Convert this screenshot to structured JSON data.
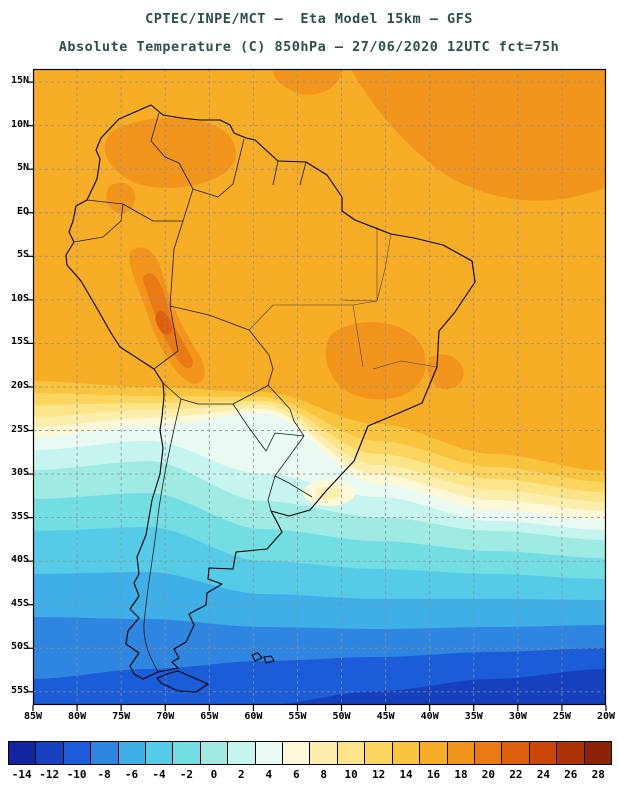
{
  "title": {
    "line1": "CPTEC/INPE/MCT –  Eta Model 15km – GFS",
    "line2": "Absolute Temperature (C) 850hPa – 27/06/2020 12UTC fct=75h"
  },
  "map": {
    "lat_ticks": [
      "15N",
      "10N",
      "5N",
      "EQ",
      "5S",
      "10S",
      "15S",
      "20S",
      "25S",
      "30S",
      "35S",
      "40S",
      "45S",
      "50S",
      "55S"
    ],
    "lon_ticks": [
      "85W",
      "80W",
      "75W",
      "70W",
      "65W",
      "60W",
      "55W",
      "50W",
      "45W",
      "40W",
      "35W",
      "30W",
      "25W",
      "20W"
    ]
  },
  "colorbar": {
    "levels": [
      "-14",
      "-12",
      "-10",
      "-8",
      "-6",
      "-4",
      "-2",
      "0",
      "2",
      "4",
      "6",
      "8",
      "10",
      "12",
      "14",
      "16",
      "18",
      "20",
      "22",
      "24",
      "26",
      "28"
    ],
    "colors": [
      "#10259F",
      "#1540BE",
      "#1B5CD8",
      "#2E86E0",
      "#3FAFE8",
      "#55CBE8",
      "#72DEE4",
      "#9FEBE4",
      "#C6F4EE",
      "#E9FAF3",
      "#FDF8D8",
      "#FCEFAE",
      "#FCE488",
      "#FBD55F",
      "#F9C53E",
      "#F7AD26",
      "#F2951C",
      "#EA7B14",
      "#DE600E",
      "#C9470B",
      "#AC3208",
      "#8C2306"
    ]
  },
  "chart_data": {
    "type": "heatmap",
    "title": "Absolute Temperature (C) 850hPa",
    "model": "CPTEC/INPE/MCT Eta Model 15km - GFS",
    "valid": "27/06/2020 12UTC fct=75h",
    "units": "C",
    "lon_range": [
      "85W",
      "20W"
    ],
    "lat_range": [
      "15N",
      "55S"
    ],
    "colorbar_levels_c": [
      -14,
      -12,
      -10,
      -8,
      -6,
      -4,
      -2,
      0,
      2,
      4,
      6,
      8,
      10,
      12,
      14,
      16,
      18,
      20,
      22,
      24,
      26,
      28
    ],
    "approx_grid": {
      "lats": [
        "15N",
        "5N",
        "5S",
        "15S",
        "25S",
        "35S",
        "45S",
        "55S"
      ],
      "lons": [
        "85W",
        "75W",
        "65W",
        "55W",
        "45W",
        "35W",
        "25W"
      ],
      "values_c": [
        [
          17,
          17,
          17,
          17,
          18,
          19,
          18
        ],
        [
          17,
          18,
          17,
          17,
          17,
          17,
          17
        ],
        [
          17,
          18,
          19,
          17,
          17,
          17,
          17
        ],
        [
          16,
          17,
          21,
          17,
          18,
          17,
          16
        ],
        [
          9,
          10,
          7,
          5,
          12,
          14,
          14
        ],
        [
          2,
          3,
          3,
          4,
          5,
          6,
          7
        ],
        [
          -3,
          -2,
          -1,
          0,
          1,
          2,
          3
        ],
        [
          -9,
          -7,
          -6,
          -6,
          -7,
          -9,
          -11
        ]
      ]
    },
    "features": [
      "Warm air (16-22C) over tropical South America and adjacent oceans north of ~18S",
      "Warm strip (20-24C) along the Andes of Peru/Bolivia",
      "Cold tongue (4-8C) advancing northeast over Paraguay / northern Argentina up to ~22S",
      "Small warm pocket (6-8C) near Uruguay / S Brazil coast",
      "Temperatures decrease poleward, reaching -10 to -12C near 55S in the South Atlantic"
    ]
  }
}
